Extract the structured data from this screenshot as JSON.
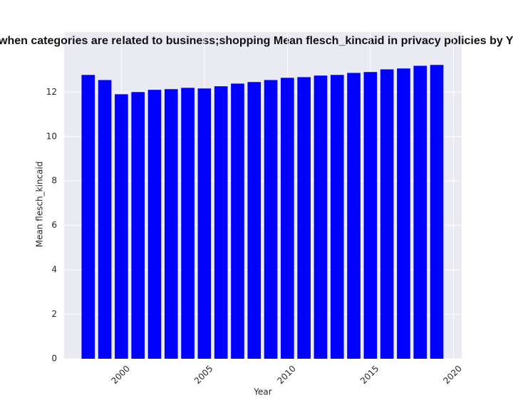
{
  "chart_data": {
    "type": "bar",
    "title": "when categories are related to business;shopping Mean flesch_kincaid in privacy policies by Ye",
    "xlabel": "Year",
    "ylabel": "Mean flesch_kincaid",
    "x": [
      1998,
      1999,
      2000,
      2001,
      2002,
      2003,
      2004,
      2005,
      2006,
      2007,
      2008,
      2009,
      2010,
      2011,
      2012,
      2013,
      2014,
      2015,
      2016,
      2017,
      2018,
      2019
    ],
    "values": [
      12.77,
      12.54,
      11.9,
      12.0,
      12.1,
      12.13,
      12.19,
      12.16,
      12.26,
      12.38,
      12.45,
      12.54,
      12.64,
      12.67,
      12.74,
      12.77,
      12.86,
      12.9,
      13.02,
      13.06,
      13.18,
      13.22
    ],
    "color": "#0000ff",
    "xlim": [
      1996.55,
      2020.5
    ],
    "xticks": [
      2000,
      2005,
      2010,
      2015,
      2020
    ],
    "ylim": [
      0,
      14.7
    ],
    "yticks": [
      0,
      2,
      4,
      6,
      8,
      10,
      12
    ],
    "grid": true
  }
}
